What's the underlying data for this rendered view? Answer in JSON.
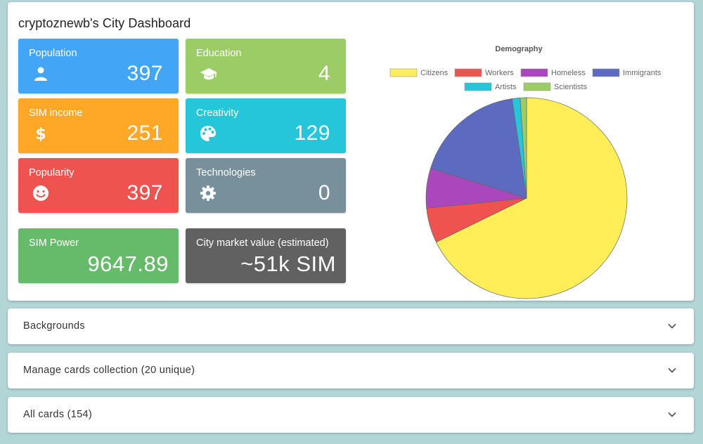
{
  "dashboard": {
    "title": "cryptoznewb's City Dashboard",
    "tiles": [
      {
        "label": "Population",
        "value": "397",
        "icon": "person-icon",
        "color": "#42a5f5"
      },
      {
        "label": "Education",
        "value": "4",
        "icon": "graduation-cap-icon",
        "color": "#9ccc65"
      },
      {
        "label": "SIM income",
        "value": "251",
        "icon": "dollar-icon",
        "color": "#ffa726"
      },
      {
        "label": "Creativity",
        "value": "129",
        "icon": "palette-icon",
        "color": "#26c6da"
      },
      {
        "label": "Popularity",
        "value": "397",
        "icon": "smiley-icon",
        "color": "#ef5350"
      },
      {
        "label": "Technologies",
        "value": "0",
        "icon": "gear-icon",
        "color": "#78909c"
      },
      {
        "label": "SIM Power",
        "value": "9647.89",
        "color": "#66bb6a"
      },
      {
        "label": "City market value (estimated)",
        "value": "~51k SIM",
        "color": "#616161"
      }
    ]
  },
  "chart_data": {
    "type": "pie",
    "title": "Demography",
    "legend_position": "top",
    "categories": [
      "Citizens",
      "Workers",
      "Homeless",
      "Immigrants",
      "Artists",
      "Scientists"
    ],
    "values": [
      265,
      22,
      25,
      70,
      5,
      4
    ],
    "colors": [
      "#ffee58",
      "#ef5350",
      "#ab47bc",
      "#5c6bc0",
      "#26c6da",
      "#9ccc65"
    ]
  },
  "sections": [
    {
      "title": "Backgrounds"
    },
    {
      "title": "Manage cards collection (20 unique)"
    },
    {
      "title": "All cards (154)"
    }
  ]
}
